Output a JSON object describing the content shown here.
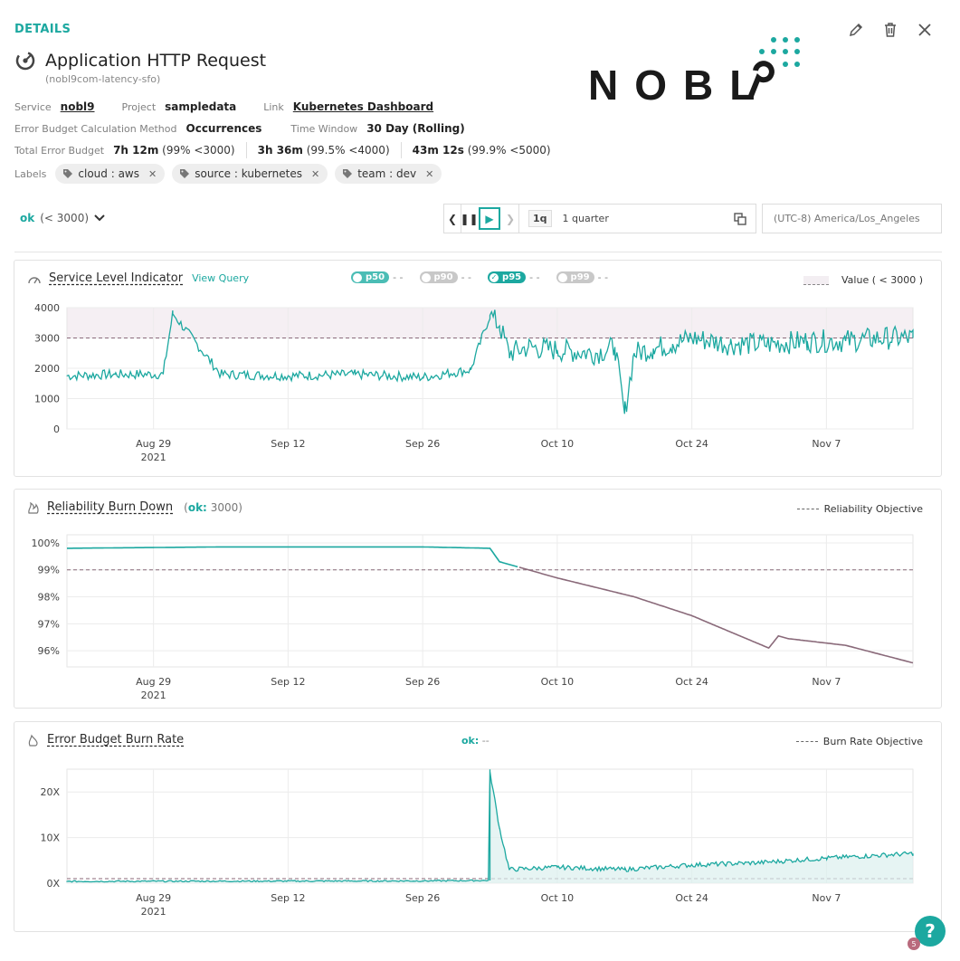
{
  "header": {
    "section_title": "DETAILS",
    "slo_name": "Application HTTP Request",
    "slo_id": "(nobl9com-latency-sfo)",
    "logo_text": "NOBL9"
  },
  "meta": {
    "service_label": "Service",
    "service_value": "nobl9",
    "project_label": "Project",
    "project_value": "sampledata",
    "link_label": "Link",
    "link_value": "Kubernetes Dashboard",
    "calc_label": "Error Budget Calculation Method",
    "calc_value": "Occurrences",
    "window_label": "Time Window",
    "window_value": "30 Day (Rolling)",
    "budget_label": "Total Error Budget",
    "budgets": [
      {
        "amount": "7h 12m",
        "detail": "(99% <3000)"
      },
      {
        "amount": "3h 36m",
        "detail": "(99.5% <4000)"
      },
      {
        "amount": "43m 12s",
        "detail": "(99.9% <5000)"
      }
    ],
    "labels_label": "Labels",
    "labels": [
      "cloud : aws",
      "source : kubernetes",
      "team : dev"
    ]
  },
  "controls": {
    "objective_name": "ok",
    "objective_detail": "(< 3000)",
    "range_badge": "1q",
    "range_text": "1 quarter",
    "timezone": "(UTC-8) America/Los_Angeles"
  },
  "sli_panel": {
    "title": "Service Level Indicator",
    "view_query": "View Query",
    "percentiles": [
      {
        "label": "p50",
        "active": true,
        "color": "#4bbdb5"
      },
      {
        "label": "p90",
        "active": false,
        "color": "#c8c8c8"
      },
      {
        "label": "p95",
        "active": true,
        "color": "#1ca8a0"
      },
      {
        "label": "p99",
        "active": false,
        "color": "#c8c8c8"
      }
    ],
    "percentile_value": "- -",
    "legend": "Value ( < 3000 )"
  },
  "reliability_panel": {
    "title": "Reliability Burn Down",
    "ok_label": "ok:",
    "ok_value": "3000",
    "legend": "Reliability Objective"
  },
  "burn_panel": {
    "title": "Error Budget Burn Rate",
    "ok_label": "ok:",
    "ok_value": "--",
    "legend": "Burn Rate Objective"
  },
  "x_ticks": [
    {
      "label": "Aug 29",
      "sub": "2021"
    },
    {
      "label": "Sep 12",
      "sub": ""
    },
    {
      "label": "Sep 26",
      "sub": ""
    },
    {
      "label": "Oct 10",
      "sub": ""
    },
    {
      "label": "Oct 24",
      "sub": ""
    },
    {
      "label": "Nov 7",
      "sub": ""
    }
  ],
  "chart_data": [
    {
      "type": "line",
      "title": "Service Level Indicator",
      "x_range": [
        "2021-08-20",
        "2021-11-16"
      ],
      "ylim": [
        0,
        4000
      ],
      "y_ticks": [
        "4000",
        "3000",
        "2000",
        "1000",
        "0"
      ],
      "threshold": 3000,
      "series": [
        {
          "name": "p95",
          "x": [
            "2021-08-20",
            "2021-08-25",
            "2021-08-30",
            "2021-08-31",
            "2021-09-05",
            "2021-09-12",
            "2021-09-19",
            "2021-09-26",
            "2021-10-01",
            "2021-10-03",
            "2021-10-04",
            "2021-10-05",
            "2021-10-07",
            "2021-10-10",
            "2021-10-14",
            "2021-10-16",
            "2021-10-17",
            "2021-10-18",
            "2021-10-20",
            "2021-10-22",
            "2021-10-24",
            "2021-10-28",
            "2021-11-01",
            "2021-11-05",
            "2021-11-09",
            "2021-11-13",
            "2021-11-16"
          ],
          "values": [
            1750,
            1800,
            1800,
            3800,
            1800,
            1750,
            1800,
            1700,
            1950,
            3750,
            3400,
            2500,
            2700,
            2600,
            2500,
            2700,
            500,
            2500,
            2650,
            2800,
            3000,
            2800,
            2800,
            2900,
            2900,
            3000,
            3000
          ]
        }
      ]
    },
    {
      "type": "line",
      "title": "Reliability Burn Down",
      "x_range": [
        "2021-08-20",
        "2021-11-16"
      ],
      "ylim": [
        95.4,
        100.3
      ],
      "y_ticks": [
        "100%",
        "99%",
        "98%",
        "97%",
        "96%"
      ],
      "threshold": 99,
      "series": [
        {
          "name": "ok",
          "x": [
            "2021-08-20",
            "2021-09-05",
            "2021-09-26",
            "2021-10-03",
            "2021-10-04",
            "2021-10-10",
            "2021-10-18",
            "2021-10-24",
            "2021-11-01",
            "2021-11-02",
            "2021-11-03",
            "2021-11-09",
            "2021-11-16"
          ],
          "values": [
            99.8,
            99.85,
            99.85,
            99.8,
            99.3,
            98.7,
            98.0,
            97.3,
            96.1,
            96.55,
            96.45,
            96.2,
            95.55
          ]
        }
      ]
    },
    {
      "type": "area",
      "title": "Error Budget Burn Rate",
      "x_range": [
        "2021-08-20",
        "2021-11-16"
      ],
      "ylim": [
        0,
        25
      ],
      "y_ticks": [
        "20X",
        "10X",
        "0X"
      ],
      "threshold": 1,
      "series": [
        {
          "name": "ok",
          "x": [
            "2021-08-20",
            "2021-09-26",
            "2021-10-03",
            "2021-10-03",
            "2021-10-04",
            "2021-10-05",
            "2021-10-10",
            "2021-10-17",
            "2021-10-24",
            "2021-10-31",
            "2021-11-07",
            "2021-11-16"
          ],
          "values": [
            0.4,
            0.5,
            0.6,
            24.5,
            12,
            3,
            3.5,
            3,
            4,
            4.5,
            5.5,
            6.5
          ]
        }
      ]
    }
  ]
}
